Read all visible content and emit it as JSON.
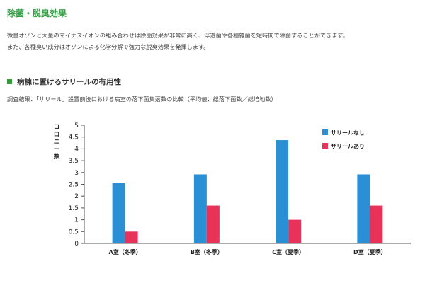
{
  "header": {
    "section_title": "除菌・脱臭効果",
    "paragraph_line1": "微量オゾンと大量のマイナスイオンの組み合わせは除菌効果が非常に高く、浮遊菌や各種雑菌を短時間で除菌することができます。",
    "paragraph_line2": "また、各種臭い成分はオゾンによる化学分解で強力な脱臭効果を発揮します。"
  },
  "section": {
    "heading": "病棟に置けるサリールの有用性",
    "caption": "調査結果：「サリール」設置前後における病室の落下菌集落数の比較（平均値：総落下菌数／総培地数）"
  },
  "colors": {
    "accent_green": "#2e9e3e",
    "series_without": "#2b8fd6",
    "series_with": "#e8325a"
  },
  "chart_data": {
    "type": "bar",
    "categories": [
      "A室（冬季）",
      "B室（冬季）",
      "C室（夏季）",
      "D室（夏季）"
    ],
    "series": [
      {
        "name": "サリールなし",
        "values": [
          2.55,
          2.92,
          4.37,
          2.92
        ]
      },
      {
        "name": "サリールあり",
        "values": [
          0.5,
          1.6,
          1.0,
          1.6
        ]
      }
    ],
    "ylabel": "コロニー数",
    "ylim": [
      0,
      5
    ],
    "yticks": [
      "0",
      "0.5",
      "1",
      "1.5",
      "2",
      "2.5",
      "3",
      "3.5",
      "4",
      "4.5",
      "5"
    ],
    "legend_position": "top-right",
    "grid": false
  }
}
